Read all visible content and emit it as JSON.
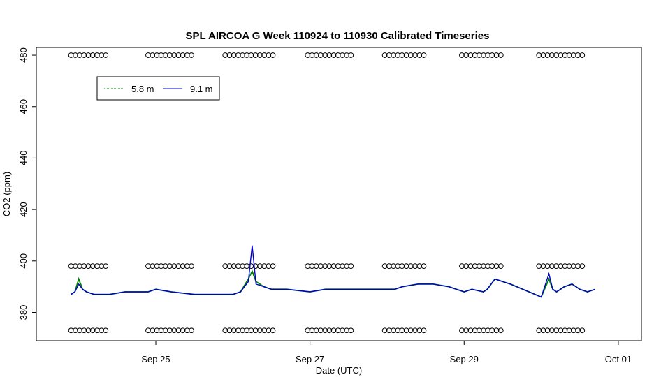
{
  "chart_data": {
    "type": "line",
    "title": "SPL AIRCOA G  Week 110924 to 110930  Calibrated Timeseries",
    "xlabel": "Date (UTC)",
    "ylabel": "CO2 (ppm)",
    "x_unit": "days, 2011-09-24 00:00 UTC = 0",
    "xlim": [
      -0.55,
      7.3
    ],
    "ylim": [
      369,
      483
    ],
    "x_ticks": [
      {
        "value": 1,
        "label": "Sep 25"
      },
      {
        "value": 3,
        "label": "Sep 27"
      },
      {
        "value": 5,
        "label": "Sep 29"
      },
      {
        "value": 7,
        "label": "Oct 01"
      }
    ],
    "y_ticks": [
      {
        "value": 380,
        "label": "380"
      },
      {
        "value": 400,
        "label": "400"
      },
      {
        "value": 420,
        "label": "420"
      },
      {
        "value": 440,
        "label": "440"
      },
      {
        "value": 460,
        "label": "460"
      },
      {
        "value": 480,
        "label": "480"
      }
    ],
    "legend": {
      "position": "top-left",
      "entries": [
        {
          "label": "5.8 m",
          "color": "#008000"
        },
        {
          "label": "9.1 m",
          "color": "#0000cc"
        }
      ]
    },
    "series": [
      {
        "name": "5.8 m",
        "color": "#008000",
        "x": [
          -0.1,
          -0.05,
          0.0,
          0.05,
          0.1,
          0.2,
          0.4,
          0.6,
          0.9,
          1.0,
          1.2,
          1.5,
          1.8,
          2.0,
          2.1,
          2.2,
          2.25,
          2.3,
          2.4,
          2.5,
          2.7,
          3.0,
          3.2,
          3.5,
          3.8,
          4.1,
          4.2,
          4.4,
          4.6,
          4.8,
          5.0,
          5.1,
          5.25,
          5.3,
          5.4,
          5.5,
          5.6,
          6.0,
          6.1,
          6.15,
          6.2,
          6.3,
          6.4,
          6.5,
          6.6,
          6.7
        ],
        "y": [
          387,
          388,
          393,
          389,
          388,
          387,
          387,
          388,
          388,
          389,
          388,
          387,
          387,
          387,
          388,
          393,
          396,
          392,
          390,
          389,
          389,
          388,
          389,
          389,
          389,
          389,
          390,
          391,
          391,
          390,
          388,
          389,
          388,
          389,
          393,
          392,
          391,
          386,
          393,
          389,
          388,
          390,
          391,
          389,
          388,
          389
        ]
      },
      {
        "name": "9.1 m",
        "color": "#0000cc",
        "x": [
          -0.1,
          -0.05,
          0.0,
          0.05,
          0.1,
          0.2,
          0.4,
          0.6,
          0.9,
          1.0,
          1.2,
          1.5,
          1.8,
          2.0,
          2.1,
          2.2,
          2.25,
          2.3,
          2.4,
          2.5,
          2.7,
          3.0,
          3.2,
          3.5,
          3.8,
          4.1,
          4.2,
          4.4,
          4.6,
          4.8,
          5.0,
          5.1,
          5.25,
          5.3,
          5.4,
          5.5,
          5.6,
          6.0,
          6.1,
          6.15,
          6.2,
          6.3,
          6.4,
          6.5,
          6.6,
          6.7
        ],
        "y": [
          387,
          388,
          391,
          389,
          388,
          387,
          387,
          388,
          388,
          389,
          388,
          387,
          387,
          387,
          388,
          392,
          406,
          391,
          390,
          389,
          389,
          388,
          389,
          389,
          389,
          389,
          390,
          391,
          391,
          390,
          388,
          389,
          388,
          389,
          393,
          392,
          391,
          386,
          395,
          389,
          388,
          390,
          391,
          389,
          388,
          389
        ]
      }
    ],
    "marker_rows": [
      {
        "y": 480,
        "clusters": [
          [
            -0.1,
            0.4
          ],
          [
            0.9,
            1.5
          ],
          [
            1.9,
            2.55
          ],
          [
            2.97,
            3.55
          ],
          [
            3.97,
            4.5
          ],
          [
            4.97,
            5.5
          ],
          [
            5.97,
            6.55
          ]
        ]
      },
      {
        "y": 398,
        "clusters": [
          [
            -0.1,
            0.4
          ],
          [
            0.9,
            1.5
          ],
          [
            1.9,
            2.55
          ],
          [
            2.97,
            3.55
          ],
          [
            3.97,
            4.5
          ],
          [
            4.97,
            5.5
          ],
          [
            5.97,
            6.55
          ]
        ]
      },
      {
        "y": 373,
        "clusters": [
          [
            -0.1,
            0.4
          ],
          [
            0.9,
            1.5
          ],
          [
            1.9,
            2.55
          ],
          [
            2.97,
            3.55
          ],
          [
            3.97,
            4.5
          ],
          [
            4.97,
            5.5
          ],
          [
            5.97,
            6.55
          ]
        ]
      }
    ]
  }
}
